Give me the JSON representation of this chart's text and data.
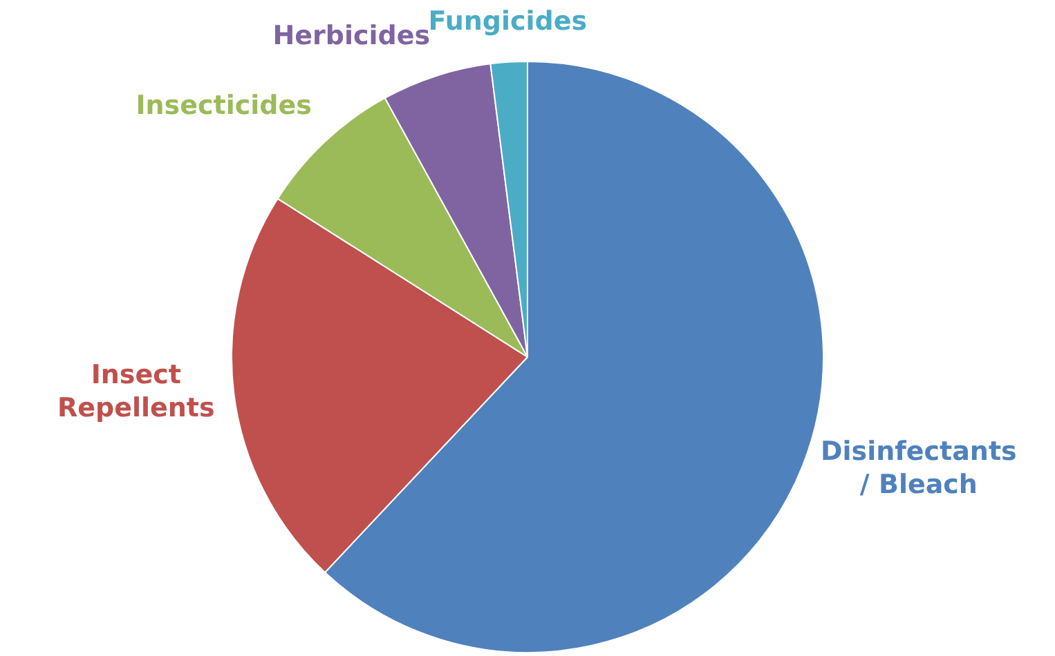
{
  "chart_data": {
    "type": "pie",
    "categories": [
      "Disinfectants / Bleach",
      "Insect Repellents",
      "Insecticides",
      "Herbicides",
      "Fungicides"
    ],
    "values": [
      62,
      22,
      8,
      6,
      2
    ],
    "colors": [
      "#4f81bd",
      "#c0504d",
      "#9bbb59",
      "#8064a2",
      "#4bacc6"
    ],
    "legend": false
  }
}
